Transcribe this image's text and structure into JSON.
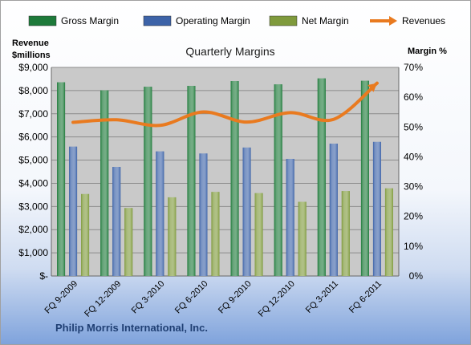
{
  "chart_data": {
    "type": "bar",
    "title": "Quarterly Margins",
    "y_left_label": [
      "Revenue",
      "$millions"
    ],
    "y_right_label": "Margin %",
    "footer": "Philip Morris International, Inc.",
    "categories": [
      "FQ 9-2009",
      "FQ 12-2009",
      "FQ 3-2010",
      "FQ 6-2010",
      "FQ 9-2010",
      "FQ 12-2010",
      "FQ 3-2011",
      "FQ 6-2011"
    ],
    "left_axis": {
      "min": 0,
      "max": 9000,
      "ticks": [
        "$-",
        "$1,000",
        "$2,000",
        "$3,000",
        "$4,000",
        "$5,000",
        "$6,000",
        "$7,000",
        "$8,000",
        "$9,000"
      ]
    },
    "right_axis": {
      "min": 0,
      "max": 70,
      "ticks": [
        "0%",
        "10%",
        "20%",
        "30%",
        "40%",
        "50%",
        "60%",
        "70%"
      ]
    },
    "series": [
      {
        "name": "Gross Margin",
        "axis": "right",
        "kind": "bar",
        "color": "#1e7a3a",
        "values": [
          65.0,
          62.3,
          63.5,
          63.8,
          65.4,
          64.3,
          66.3,
          65.5
        ]
      },
      {
        "name": "Operating Margin",
        "axis": "right",
        "kind": "bar",
        "color": "#3d63a8",
        "values": [
          43.4,
          36.6,
          41.8,
          41.1,
          43.1,
          39.3,
          44.4,
          45.0
        ]
      },
      {
        "name": "Net Margin",
        "axis": "right",
        "kind": "bar",
        "color": "#7f9a3c",
        "values": [
          27.5,
          22.8,
          26.4,
          28.2,
          27.8,
          24.9,
          28.5,
          29.4
        ]
      },
      {
        "name": "Revenues",
        "axis": "left",
        "kind": "line",
        "color": "#e97a1f",
        "values": [
          6630,
          6740,
          6500,
          7080,
          6640,
          7050,
          6760,
          8320
        ]
      }
    ],
    "grid": true,
    "legend_position": "top"
  }
}
